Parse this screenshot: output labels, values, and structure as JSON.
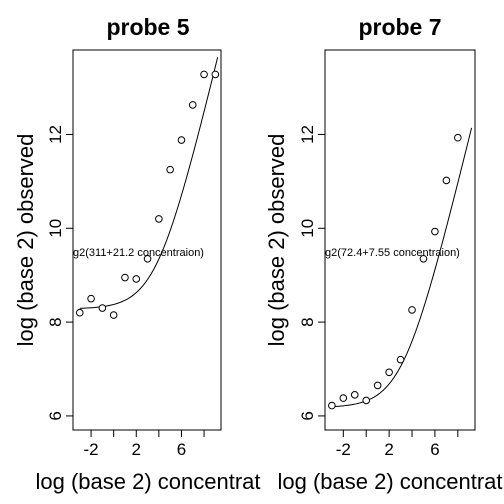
{
  "chart_data": [
    {
      "type": "scatter",
      "title": "probe 5",
      "xlabel": "log (base 2) concentrat",
      "ylabel": "log (base 2) observed",
      "annotation": "g2(311+21.2 concentraion)",
      "xticks": [
        "-2",
        "2",
        "6"
      ],
      "yticks": [
        "6",
        "8",
        "10",
        "12"
      ],
      "xlim": [
        -3.6,
        9.5
      ],
      "ylim": [
        5.7,
        13.8
      ],
      "grid": false,
      "x": [
        -3,
        -2,
        -1,
        0,
        1,
        2,
        3,
        4,
        5,
        6,
        7,
        8,
        9
      ],
      "y": [
        8.2,
        8.5,
        8.3,
        8.15,
        8.95,
        8.92,
        9.35,
        10.2,
        11.25,
        11.88,
        12.63,
        13.28,
        13.28
      ],
      "fit": {
        "a": 311,
        "b": 21.2
      }
    },
    {
      "type": "scatter",
      "title": "probe 7",
      "xlabel": "log (base 2) concentrat",
      "ylabel": "log (base 2) observed",
      "annotation": "g2(72.4+7.55 concentraion)",
      "xticks": [
        "-2",
        "2",
        "6"
      ],
      "yticks": [
        "6",
        "8",
        "10",
        "12"
      ],
      "xlim": [
        -3.6,
        9.5
      ],
      "ylim": [
        5.7,
        13.8
      ],
      "grid": false,
      "x": [
        -3,
        -2,
        -1,
        0,
        1,
        2,
        3,
        4,
        5,
        6,
        7,
        8
      ],
      "y": [
        6.22,
        6.38,
        6.45,
        6.33,
        6.65,
        6.93,
        7.2,
        8.26,
        9.35,
        9.93,
        11.02,
        11.93
      ],
      "fit": {
        "a": 72.4,
        "b": 7.55
      }
    }
  ]
}
